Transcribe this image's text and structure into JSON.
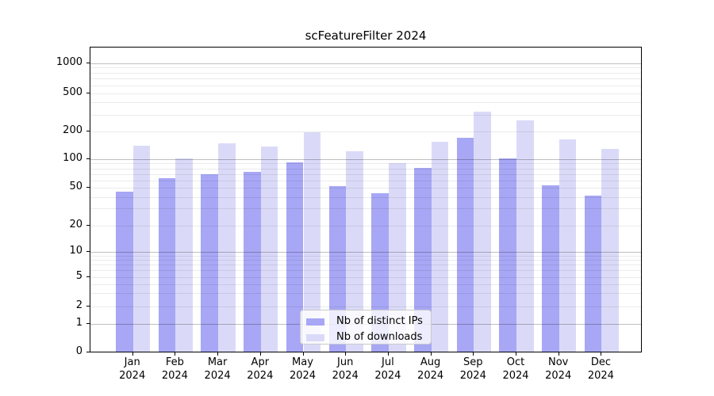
{
  "chart_data": {
    "type": "bar",
    "title": "scFeatureFilter 2024",
    "categories": [
      "Jan 2024",
      "Feb 2024",
      "Mar 2024",
      "Apr 2024",
      "May 2024",
      "Jun 2024",
      "Jul 2024",
      "Aug 2024",
      "Sep 2024",
      "Oct 2024",
      "Nov 2024",
      "Dec 2024"
    ],
    "series": [
      {
        "name": "Nb of distinct IPs",
        "color": "#a7a7f5",
        "values": [
          45,
          63,
          70,
          74,
          93,
          52,
          44,
          81,
          172,
          102,
          53,
          41
        ]
      },
      {
        "name": "Nb of downloads",
        "color": "#dadaf8",
        "values": [
          141,
          103,
          148,
          137,
          198,
          122,
          90,
          155,
          318,
          263,
          164,
          130
        ]
      }
    ],
    "yticks": [
      0,
      1,
      2,
      5,
      10,
      20,
      50,
      100,
      200,
      500,
      1000
    ],
    "ylim": [
      0,
      1500
    ],
    "scale": "symlog",
    "grid": true,
    "legend_position": "lower center",
    "axis_color": "#000000",
    "major_grid_color": "#bfbfbf",
    "minor_grid_color": "#ebebeb"
  }
}
